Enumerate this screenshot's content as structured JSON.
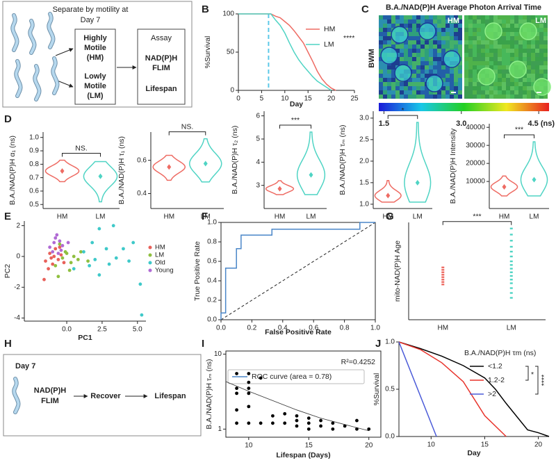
{
  "panel_labels": [
    "A",
    "B",
    "C",
    "D",
    "E",
    "F",
    "G",
    "H",
    "I",
    "J"
  ],
  "diagram_a": {
    "heading": [
      "Separate by motility at",
      "Day 7"
    ],
    "hm_label": [
      "Highly",
      "Motile",
      "(HM)"
    ],
    "lm_label": [
      "Lowly",
      "Motile",
      "(LM)"
    ],
    "assay_title": "Assay",
    "assay_items": [
      "NAD(P)H",
      "FLIM",
      "Lifespan"
    ]
  },
  "image_c": {
    "title": "B.A./NAD(P)H Average Photon Arrival Time",
    "panels": [
      "HM",
      "LM"
    ],
    "row_label": "BWM",
    "colorbar": {
      "lim": [
        1.4,
        4.7
      ],
      "ticks": [
        1.5,
        {
          "value": 3,
          "label": "3.0"
        },
        {
          "value": 4.5,
          "label": "4.5 (ns)"
        }
      ]
    }
  },
  "diagram_h": {
    "day": "Day 7",
    "steps": [
      [
        "NAD(P)H",
        "FLIM"
      ],
      [
        "Recover"
      ],
      [
        "Lifespan"
      ]
    ]
  },
  "chart_data": [
    {
      "type": "line",
      "xlabel": "Day",
      "ylabel": "%Survival",
      "xlim": [
        0,
        25
      ],
      "xticks": [
        0,
        5,
        10,
        15,
        20,
        25
      ],
      "ylim": [
        0,
        100
      ],
      "yticks": [
        0,
        50,
        100
      ],
      "marker_x": 6.5,
      "marker_color": "#5bc8e8",
      "significance": "****",
      "legend": "upper right",
      "series": [
        {
          "name": "HM",
          "color": "#ee6b63",
          "x": [
            0,
            7,
            8,
            9,
            10,
            11,
            12,
            13,
            14,
            15,
            16,
            17,
            18,
            19,
            20,
            21
          ],
          "values": [
            100,
            100,
            97,
            95,
            90,
            85,
            78,
            70,
            62,
            50,
            38,
            25,
            15,
            8,
            3,
            0
          ]
        },
        {
          "name": "LM",
          "color": "#4fd4c4",
          "x": [
            0,
            7,
            8,
            9,
            10,
            11,
            12,
            13,
            14,
            15,
            16,
            17,
            18,
            19,
            20
          ],
          "values": [
            100,
            100,
            92,
            85,
            75,
            62,
            50,
            40,
            32,
            25,
            18,
            12,
            8,
            4,
            0
          ]
        }
      ]
    },
    {
      "type": "violin",
      "ylabel": "B.A./NAD(P)H α₁ (ns)",
      "ylim": [
        0.47,
        1.04
      ],
      "yticks": [
        0.5,
        0.6,
        0.7,
        0.8,
        0.9,
        {
          "value": 1,
          "label": "1.0"
        }
      ],
      "categories": [
        "HM",
        "LM"
      ],
      "colors": [
        "#ee6b63",
        "#4fd4c4"
      ],
      "values": [
        0.75,
        0.71
      ],
      "min": [
        0.67,
        0.52
      ],
      "max": [
        0.83,
        0.82
      ],
      "significance": "NS."
    },
    {
      "type": "violin",
      "ylabel": "B.A./NAD(P)H τ₁ (ns)",
      "ylim": [
        0.31,
        0.77
      ],
      "yticks": [
        0.4,
        0.6
      ],
      "categories": [
        "HM",
        "LM"
      ],
      "colors": [
        "#ee6b63",
        "#4fd4c4"
      ],
      "values": [
        0.56,
        0.58
      ],
      "min": [
        0.48,
        0.47
      ],
      "max": [
        0.63,
        0.73
      ],
      "significance": "NS."
    },
    {
      "type": "violin",
      "ylabel": "B.A./NAD(P)H τ₂ (ns)",
      "ylim": [
        2.0,
        6.2
      ],
      "yticks": [
        3,
        4,
        5,
        6
      ],
      "categories": [
        "HM",
        "LM"
      ],
      "colors": [
        "#ee6b63",
        "#4fd4c4"
      ],
      "values": [
        2.85,
        3.45
      ],
      "min": [
        2.6,
        2.6
      ],
      "max": [
        3.2,
        5.3
      ],
      "significance": "***"
    },
    {
      "type": "violin",
      "ylabel": "B.A./NAD(P)H τₘ (ns)",
      "ylim": [
        0.9,
        3.16
      ],
      "yticks": [
        {
          "value": 1,
          "label": "1.0"
        },
        1.5,
        {
          "value": 2,
          "label": "2.0"
        },
        2.5,
        {
          "value": 3,
          "label": "3.0"
        }
      ],
      "categories": [
        "HM",
        "LM"
      ],
      "colors": [
        "#ee6b63",
        "#4fd4c4"
      ],
      "values": [
        1.2,
        1.5
      ],
      "min": [
        1.05,
        1.05
      ],
      "max": [
        1.55,
        2.9
      ],
      "significance": "*"
    },
    {
      "type": "violin",
      "ylabel": "B.A./NAD(P)H Intensity",
      "ylim": [
        -5000,
        42000
      ],
      "yticks": [
        10000,
        20000,
        30000,
        40000
      ],
      "categories": [
        "HM",
        "LM"
      ],
      "colors": [
        "#ee6b63",
        "#4fd4c4"
      ],
      "values": [
        7000,
        11000
      ],
      "min": [
        2000,
        2000
      ],
      "max": [
        13000,
        32000
      ],
      "significance": "***"
    },
    {
      "type": "scatter",
      "xlabel": "PC1",
      "ylabel": "PC2",
      "xlim": [
        -3,
        5.6
      ],
      "xticks": [
        {
          "value": 0,
          "label": "0.0"
        },
        2.5,
        {
          "value": 5,
          "label": "5.0"
        }
      ],
      "ylim": [
        -4.2,
        2.3
      ],
      "yticks": [
        -4,
        -2,
        0,
        2
      ],
      "legend": "upper right",
      "series": [
        {
          "name": "HM",
          "color": "#e8605a",
          "x": [
            -1.5,
            -1.2,
            -1.0,
            -0.8,
            -0.6,
            -0.4,
            -1.3,
            -0.9,
            -0.2,
            -1.6,
            -0.5,
            -1.1
          ],
          "values": [
            -0.3,
            0.2,
            -0.5,
            0.5,
            -0.2,
            0.1,
            -0.8,
            0.0,
            -0.4,
            -1.5,
            0.6,
            -0.1
          ]
        },
        {
          "name": "LM",
          "color": "#8fbf3f",
          "x": [
            -0.8,
            -0.3,
            0.0,
            0.3,
            -0.5,
            0.8,
            1.5,
            0.2,
            -0.1,
            1.0,
            0.5,
            -0.6
          ],
          "values": [
            -0.6,
            -0.1,
            0.2,
            -0.4,
            0.8,
            -0.2,
            -0.3,
            -0.9,
            0.3,
            0.3,
            0.0,
            -1.3
          ]
        },
        {
          "name": "Old",
          "color": "#3fc9c9",
          "x": [
            2.3,
            3.3,
            4.7,
            5.2,
            5.3,
            1.2,
            2.0,
            2.8,
            3.5,
            4.0,
            1.6,
            2.3,
            0.5,
            3.0,
            1.8,
            4.4
          ],
          "values": [
            1.8,
            2.0,
            0.9,
            -1.8,
            -3.8,
            0.3,
            -0.2,
            0.5,
            -0.1,
            0.5,
            -0.6,
            -1.2,
            -0.8,
            -0.5,
            0.9,
            -0.3
          ]
        },
        {
          "name": "Young",
          "color": "#b06ad4",
          "x": [
            -0.7,
            -0.5,
            -0.9,
            -0.4,
            -1.0,
            -0.6,
            -0.8,
            -0.3,
            -1.2,
            0.1
          ],
          "values": [
            1.4,
            1.0,
            0.9,
            0.4,
            0.3,
            0.2,
            1.2,
            0.7,
            0.6,
            0.9
          ]
        }
      ]
    },
    {
      "type": "line",
      "xlabel": "False Positive Rate",
      "ylabel": "True Positive Rate",
      "frame": "box",
      "diagonal": true,
      "legend": "lower right",
      "xlim": [
        0,
        1
      ],
      "xticks": [
        {
          "value": 0,
          "label": "0.0"
        },
        0.2,
        0.4,
        0.6,
        0.8,
        {
          "value": 1,
          "label": "1.0"
        }
      ],
      "ylim": [
        0,
        1
      ],
      "yticks": [
        {
          "value": 0,
          "label": "0.0"
        },
        0.2,
        0.4,
        0.6,
        0.8,
        {
          "value": 1,
          "label": "1.0"
        }
      ],
      "series": [
        {
          "name": "ROC curve (area = 0.78)",
          "color": "#4a86c8",
          "x": [
            0,
            0,
            0.03,
            0.03,
            0.1,
            0.1,
            0.13,
            0.13,
            0.33,
            0.33,
            0.9,
            0.9,
            1
          ],
          "values": [
            0,
            0.07,
            0.07,
            0.53,
            0.53,
            0.73,
            0.73,
            0.87,
            0.87,
            0.93,
            0.93,
            1,
            1
          ]
        }
      ]
    },
    {
      "type": "strip",
      "ylabel": "mito-NAD(P)H Age",
      "categories": [
        "HM",
        "LM"
      ],
      "colors": [
        "#ee6b63",
        "#4fd4c4"
      ],
      "ylim": [
        3,
        11
      ],
      "values": [
        [
          5.9,
          6.1,
          6.3,
          6.5,
          6.7,
          6.9,
          7.1,
          7.3
        ],
        [
          4.8,
          5.2,
          5.6,
          6.0,
          6.3,
          6.6,
          6.9,
          7.2,
          7.5,
          7.8,
          8.2,
          8.6,
          9.0,
          9.5,
          10.0,
          10.5
        ]
      ],
      "significance": "***"
    },
    {
      "type": "scatter",
      "xlabel": "Lifespan (Days)",
      "ylabel": "B.A./NAD(P)H τₘ (ns)",
      "frame": "box",
      "ylog": true,
      "xlim": [
        8.1,
        21
      ],
      "xticks": [
        10,
        15,
        20
      ],
      "ylim": [
        0.78,
        11
      ],
      "yticks": [
        1,
        10
      ],
      "annotation": "R²=0.4252",
      "series": [
        {
          "color": "#000000",
          "x": [
            9,
            9,
            9,
            9,
            9,
            10,
            10,
            10,
            10,
            10,
            10,
            11,
            11,
            12,
            12,
            13,
            13,
            14,
            14,
            14,
            15,
            15,
            15,
            16,
            16,
            17,
            17,
            18,
            19,
            19,
            20
          ],
          "values": [
            5.5,
            3.5,
            3.0,
            1.8,
            1.2,
            5.5,
            4.2,
            3.5,
            3.0,
            2.0,
            1.2,
            4.8,
            1.2,
            1.5,
            1.2,
            1.6,
            1.2,
            1.5,
            1.3,
            1.1,
            1.4,
            1.2,
            1.0,
            1.3,
            1.1,
            1.2,
            1.0,
            1.1,
            1.3,
            1.0,
            1.0
          ]
        }
      ],
      "fit": {
        "color": "#333333",
        "x": [
          8.1,
          10,
          12,
          14,
          16,
          18,
          20
        ],
        "values": [
          4.3,
          3.2,
          2.4,
          1.8,
          1.4,
          1.15,
          0.95
        ]
      }
    },
    {
      "type": "line",
      "xlabel": "Day",
      "ylabel": "%Survival",
      "xlim": [
        7,
        21
      ],
      "xticks": [
        10,
        15,
        20
      ],
      "ylim": [
        0,
        1
      ],
      "yticks": [
        {
          "value": 0,
          "label": "0.0"
        },
        0.5,
        {
          "value": 1,
          "label": "1.0"
        }
      ],
      "legend": "upper right",
      "legend_title": "B.A./NAD(P)H τm (ns)",
      "significance": [
        "*",
        "****"
      ],
      "series": [
        {
          "name": "<1.2",
          "color": "#000000",
          "x": [
            7,
            9,
            11,
            13,
            15,
            16,
            17,
            19,
            20,
            21
          ],
          "values": [
            1,
            0.93,
            0.85,
            0.75,
            0.62,
            0.5,
            0.35,
            0.07,
            0.04,
            0
          ]
        },
        {
          "name": "1.2-2",
          "color": "#e8322a",
          "x": [
            7,
            9,
            11,
            13,
            15,
            17
          ],
          "values": [
            1,
            0.92,
            0.78,
            0.58,
            0.22,
            0
          ]
        },
        {
          "name": ">2",
          "color": "#4a5ad8",
          "x": [
            7,
            10.5
          ],
          "values": [
            1,
            0
          ]
        }
      ]
    }
  ]
}
